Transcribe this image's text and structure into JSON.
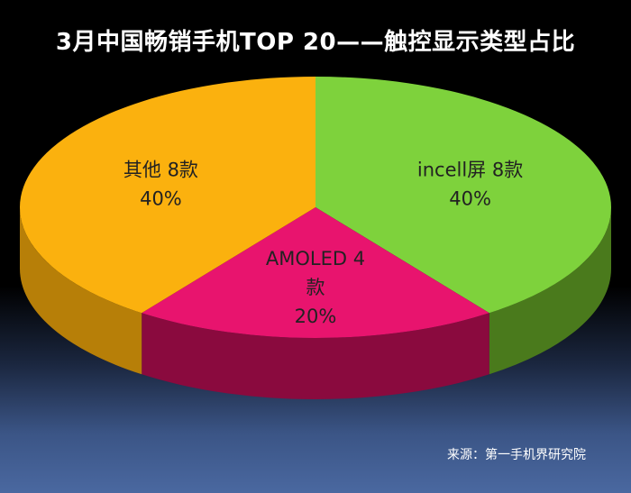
{
  "title": "3月中国畅销手机TOP 20——触控显示类型占比",
  "source": "来源：第一手机界研究院",
  "chart_data": {
    "type": "pie",
    "title": "3月中国畅销手机TOP 20——触控显示类型占比",
    "slices": [
      {
        "label_line1": "incell屏 8款",
        "label_line2": "",
        "percent_label": "40%",
        "value": 40,
        "count": 8,
        "color": "#7ed23c",
        "side_color": "#4a7a1c"
      },
      {
        "label_line1": "AMOLED  4",
        "label_line2": "款",
        "percent_label": "20%",
        "value": 20,
        "count": 4,
        "color": "#e8146e",
        "side_color": "#8a0a3e"
      },
      {
        "label_line1": "其他 8款",
        "label_line2": "",
        "percent_label": "40%",
        "value": 40,
        "count": 8,
        "color": "#fbb10e",
        "side_color": "#b77f08"
      }
    ]
  }
}
